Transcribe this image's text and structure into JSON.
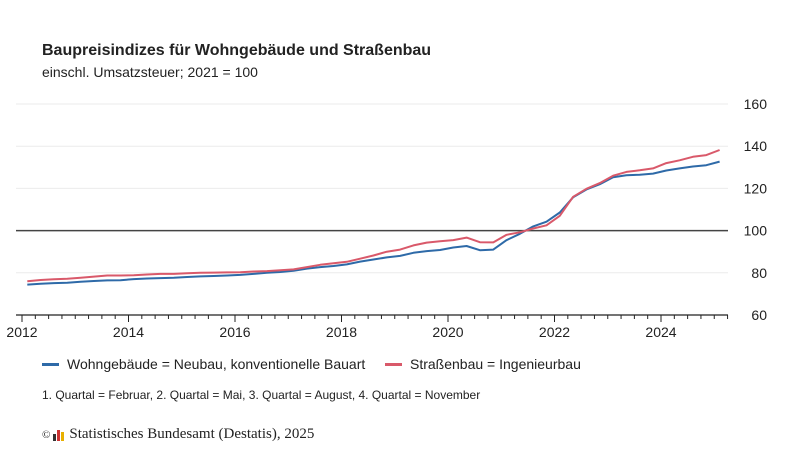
{
  "header": {
    "title": "Baupreisindizes für Wohngebäude und Straßenbau",
    "subtitle": "einschl. Umsatzsteuer; 2021 = 100"
  },
  "chart_data": {
    "type": "line",
    "title": "Baupreisindizes für Wohngebäude und Straßenbau",
    "subtitle": "einschl. Umsatzsteuer; 2021 = 100",
    "xlabel": "",
    "ylabel": "",
    "ylim": [
      60,
      160
    ],
    "yticks": [
      60,
      80,
      100,
      120,
      140,
      160
    ],
    "xticks": [
      "2012",
      "2014",
      "2016",
      "2018",
      "2020",
      "2022",
      "2024"
    ],
    "xlim": [
      2012,
      2025.25
    ],
    "reference_line": 100,
    "grid": true,
    "legend": "bottom",
    "x": [
      "2012 Q1",
      "2012 Q2",
      "2012 Q3",
      "2012 Q4",
      "2013 Q1",
      "2013 Q2",
      "2013 Q3",
      "2013 Q4",
      "2014 Q1",
      "2014 Q2",
      "2014 Q3",
      "2014 Q4",
      "2015 Q1",
      "2015 Q2",
      "2015 Q3",
      "2015 Q4",
      "2016 Q1",
      "2016 Q2",
      "2016 Q3",
      "2016 Q4",
      "2017 Q1",
      "2017 Q2",
      "2017 Q3",
      "2017 Q4",
      "2018 Q1",
      "2018 Q2",
      "2018 Q3",
      "2018 Q4",
      "2019 Q1",
      "2019 Q2",
      "2019 Q3",
      "2019 Q4",
      "2020 Q1",
      "2020 Q2",
      "2020 Q3",
      "2020 Q4",
      "2021 Q1",
      "2021 Q2",
      "2021 Q3",
      "2021 Q4",
      "2022 Q1",
      "2022 Q2",
      "2022 Q3",
      "2022 Q4",
      "2023 Q1",
      "2023 Q2",
      "2023 Q3",
      "2023 Q4",
      "2024 Q1",
      "2024 Q2",
      "2024 Q3",
      "2024 Q4",
      "2025 Q1"
    ],
    "series": [
      {
        "name": "Wohngebäude = Neubau, konventionelle Bauart",
        "color": "#2e6aa8",
        "values": [
          74.4,
          74.8,
          75.1,
          75.3,
          75.8,
          76.1,
          76.4,
          76.5,
          77.0,
          77.3,
          77.5,
          77.7,
          78.0,
          78.3,
          78.5,
          78.7,
          79.0,
          79.5,
          80.0,
          80.4,
          81.0,
          82.0,
          82.7,
          83.2,
          84.0,
          85.3,
          86.3,
          87.3,
          88.0,
          89.5,
          90.3,
          90.8,
          92.0,
          92.7,
          90.7,
          91.0,
          95.5,
          98.5,
          102.0,
          104.2,
          108.6,
          115.8,
          119.5,
          122.0,
          125.3,
          126.2,
          126.5,
          127.0,
          128.5,
          129.5,
          130.4,
          131.0,
          132.7
        ]
      },
      {
        "name": "Straßenbau = Ingenieurbau",
        "color": "#d9596a",
        "values": [
          76.0,
          76.6,
          76.9,
          77.2,
          77.7,
          78.2,
          78.7,
          78.7,
          78.8,
          79.2,
          79.5,
          79.5,
          79.8,
          80.0,
          80.1,
          80.2,
          80.3,
          80.6,
          80.8,
          81.2,
          81.6,
          82.7,
          83.8,
          84.5,
          85.2,
          86.7,
          88.2,
          90.0,
          91.0,
          93.0,
          94.3,
          95.0,
          95.5,
          96.7,
          94.5,
          94.4,
          98.0,
          99.2,
          101.0,
          102.5,
          107.0,
          116.0,
          119.8,
          122.5,
          126.0,
          127.8,
          128.6,
          129.5,
          132.0,
          133.3,
          135.0,
          135.8,
          138.2
        ]
      }
    ]
  },
  "note": "1. Quartal = Februar, 2. Quartal = Mai, 3. Quartal = August, 4. Quartal = November",
  "source": {
    "copyright": "©",
    "text": "Statistisches Bundesamt (Destatis), 2025"
  }
}
